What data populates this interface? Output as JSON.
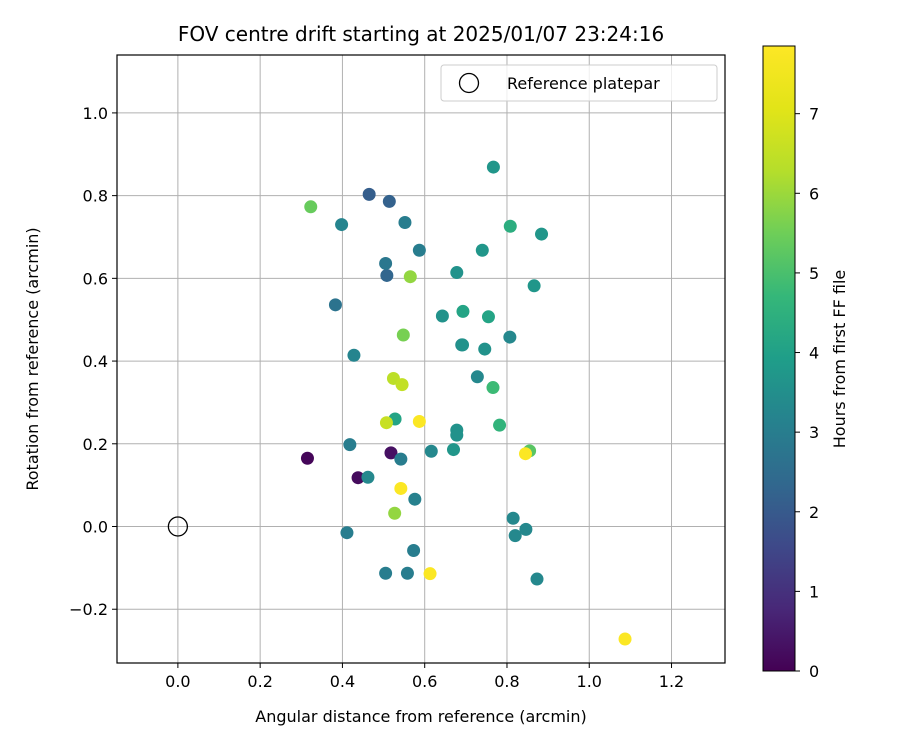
{
  "chart_data": {
    "type": "scatter",
    "title": "FOV centre drift starting at 2025/01/07 23:24:16",
    "xlabel": "Angular distance from reference (arcmin)",
    "ylabel": "Rotation from reference (arcmin)",
    "xlim": [
      -0.148,
      1.33
    ],
    "ylim": [
      -0.33,
      1.14
    ],
    "xticks": [
      0.0,
      0.2,
      0.4,
      0.6,
      0.8,
      1.0,
      1.2
    ],
    "xtick_labels": [
      "0.0",
      "0.2",
      "0.4",
      "0.6",
      "0.8",
      "1.0",
      "1.2"
    ],
    "yticks": [
      -0.2,
      0.0,
      0.2,
      0.4,
      0.6,
      0.8,
      1.0
    ],
    "ytick_labels": [
      "−0.2",
      "0.0",
      "0.2",
      "0.4",
      "0.6",
      "0.8",
      "1.0"
    ],
    "grid": true,
    "legend": {
      "position": "top-right",
      "entries": [
        "Reference platepar"
      ]
    },
    "reference_point": {
      "x": 0.0,
      "y": 0.0
    },
    "colorbar": {
      "label": "Hours from first FF file",
      "colormap": "viridis",
      "range": [
        0,
        7.85
      ],
      "ticks": [
        0,
        1,
        2,
        3,
        4,
        5,
        6,
        7
      ],
      "tick_labels": [
        "0",
        "1",
        "2",
        "3",
        "4",
        "5",
        "6",
        "7"
      ]
    },
    "points": [
      {
        "x": 0.315,
        "y": 0.165,
        "c": 0.1
      },
      {
        "x": 0.438,
        "y": 0.118,
        "c": 0.2
      },
      {
        "x": 0.518,
        "y": 0.178,
        "c": 0.3
      },
      {
        "x": 0.465,
        "y": 0.803,
        "c": 2.1
      },
      {
        "x": 0.514,
        "y": 0.786,
        "c": 2.2
      },
      {
        "x": 0.508,
        "y": 0.607,
        "c": 2.3
      },
      {
        "x": 0.383,
        "y": 0.536,
        "c": 2.7
      },
      {
        "x": 0.505,
        "y": 0.636,
        "c": 2.8
      },
      {
        "x": 0.552,
        "y": 0.735,
        "c": 3.0
      },
      {
        "x": 0.587,
        "y": 0.668,
        "c": 3.0
      },
      {
        "x": 0.418,
        "y": 0.198,
        "c": 3.0
      },
      {
        "x": 0.542,
        "y": 0.163,
        "c": 3.0
      },
      {
        "x": 0.411,
        "y": -0.015,
        "c": 3.0
      },
      {
        "x": 0.505,
        "y": -0.113,
        "c": 3.0
      },
      {
        "x": 0.558,
        "y": -0.113,
        "c": 3.0
      },
      {
        "x": 0.573,
        "y": -0.058,
        "c": 3.0
      },
      {
        "x": 0.576,
        "y": 0.066,
        "c": 3.1
      },
      {
        "x": 0.428,
        "y": 0.414,
        "c": 3.2
      },
      {
        "x": 0.398,
        "y": 0.73,
        "c": 3.2
      },
      {
        "x": 0.462,
        "y": 0.119,
        "c": 3.3
      },
      {
        "x": 0.616,
        "y": 0.182,
        "c": 3.3
      },
      {
        "x": 0.69,
        "y": 0.439,
        "c": 3.3
      },
      {
        "x": 0.728,
        "y": 0.362,
        "c": 3.3
      },
      {
        "x": 0.807,
        "y": 0.458,
        "c": 3.3
      },
      {
        "x": 0.815,
        "y": 0.02,
        "c": 3.3
      },
      {
        "x": 0.82,
        "y": -0.022,
        "c": 3.3
      },
      {
        "x": 0.846,
        "y": -0.007,
        "c": 3.3
      },
      {
        "x": 0.873,
        "y": -0.127,
        "c": 3.3
      },
      {
        "x": 0.678,
        "y": 0.614,
        "c": 3.6
      },
      {
        "x": 0.643,
        "y": 0.509,
        "c": 3.6
      },
      {
        "x": 0.692,
        "y": 0.439,
        "c": 3.6
      },
      {
        "x": 0.746,
        "y": 0.429,
        "c": 3.6
      },
      {
        "x": 0.678,
        "y": 0.233,
        "c": 3.6
      },
      {
        "x": 0.678,
        "y": 0.221,
        "c": 3.6
      },
      {
        "x": 0.67,
        "y": 0.186,
        "c": 3.7
      },
      {
        "x": 0.74,
        "y": 0.668,
        "c": 3.7
      },
      {
        "x": 0.767,
        "y": 0.869,
        "c": 3.7
      },
      {
        "x": 0.866,
        "y": 0.582,
        "c": 3.7
      },
      {
        "x": 0.884,
        "y": 0.707,
        "c": 3.7
      },
      {
        "x": 0.528,
        "y": 0.26,
        "c": 4.1
      },
      {
        "x": 0.693,
        "y": 0.52,
        "c": 4.1
      },
      {
        "x": 0.755,
        "y": 0.507,
        "c": 4.1
      },
      {
        "x": 0.808,
        "y": 0.726,
        "c": 4.4
      },
      {
        "x": 0.782,
        "y": 0.245,
        "c": 4.6
      },
      {
        "x": 0.766,
        "y": 0.336,
        "c": 4.8
      },
      {
        "x": 0.855,
        "y": 0.183,
        "c": 5.2
      },
      {
        "x": 0.323,
        "y": 0.773,
        "c": 5.4
      },
      {
        "x": 0.548,
        "y": 0.463,
        "c": 5.6
      },
      {
        "x": 0.565,
        "y": 0.604,
        "c": 5.9
      },
      {
        "x": 0.527,
        "y": 0.032,
        "c": 5.9
      },
      {
        "x": 0.524,
        "y": 0.358,
        "c": 6.4
      },
      {
        "x": 0.545,
        "y": 0.343,
        "c": 6.5
      },
      {
        "x": 0.507,
        "y": 0.251,
        "c": 6.6
      },
      {
        "x": 0.587,
        "y": 0.254,
        "c": 7.8
      },
      {
        "x": 0.542,
        "y": 0.092,
        "c": 7.8
      },
      {
        "x": 0.613,
        "y": -0.114,
        "c": 7.8
      },
      {
        "x": 0.845,
        "y": 0.176,
        "c": 7.8
      },
      {
        "x": 1.087,
        "y": -0.272,
        "c": 7.8
      }
    ]
  }
}
